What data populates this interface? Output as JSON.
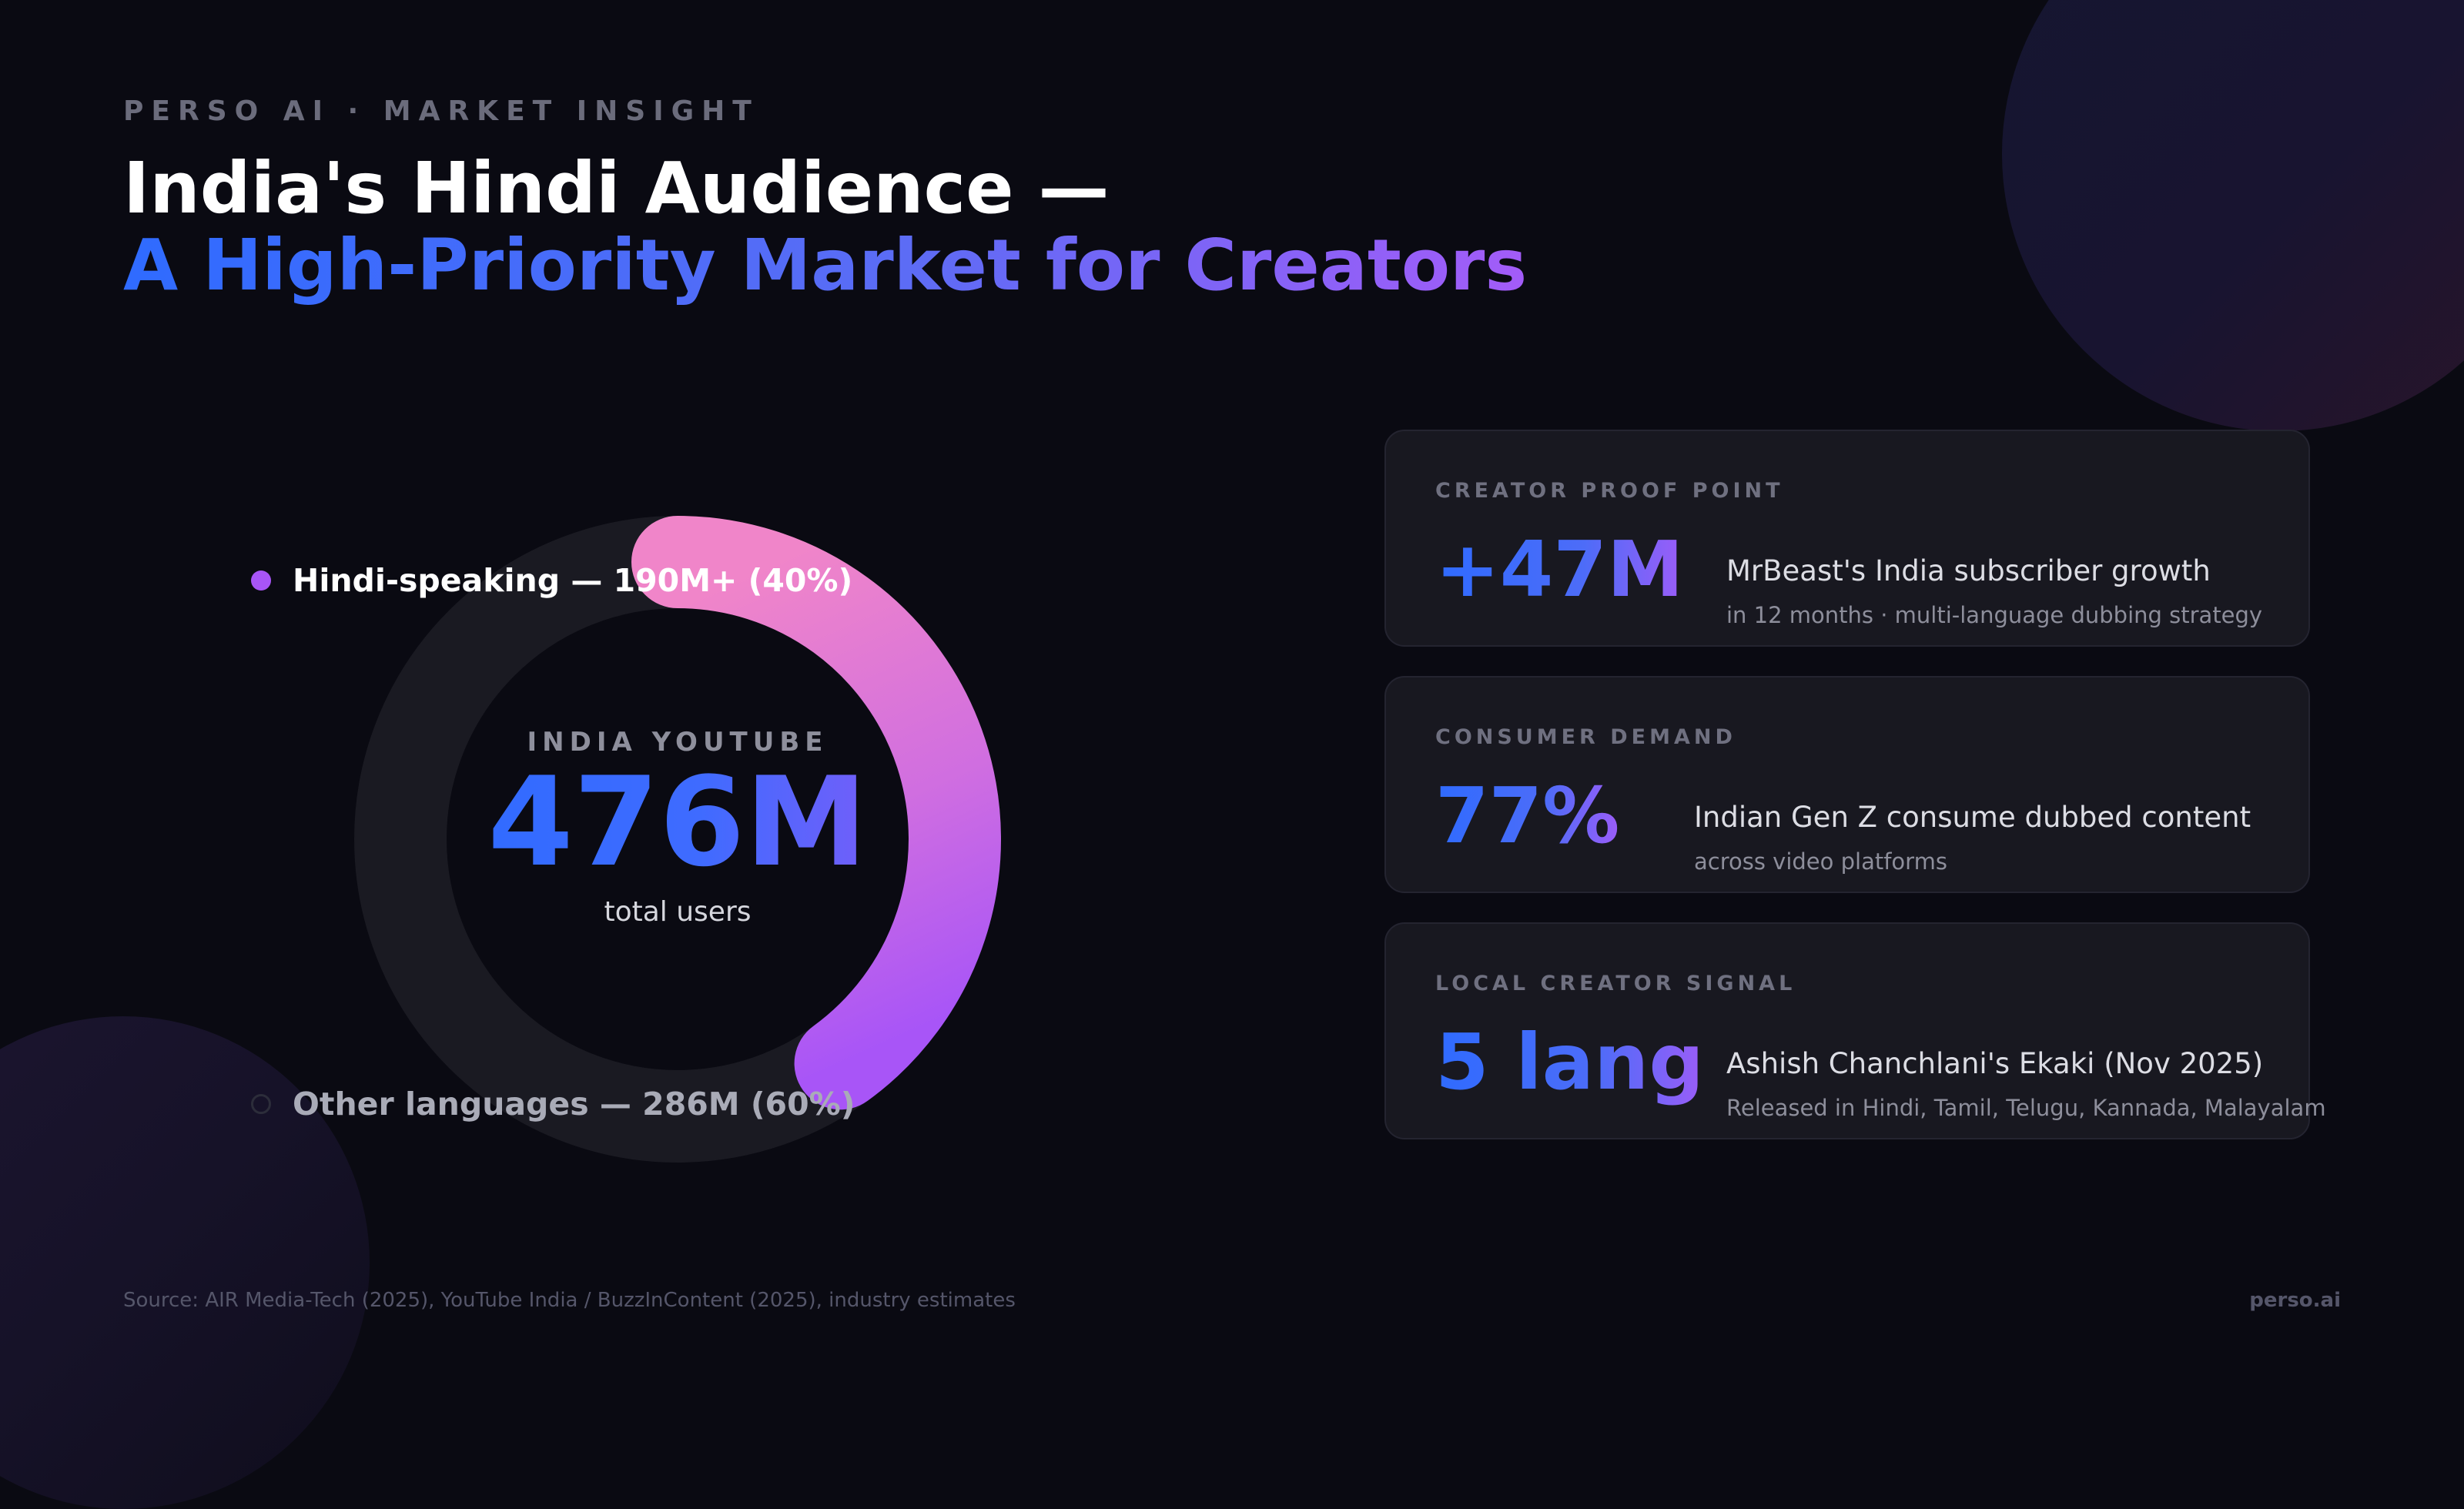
{
  "eyebrow": "PERSO AI · MARKET INSIGHT",
  "title": {
    "line1": "India's Hindi Audience —",
    "line2": "A High-Priority Market for Creators"
  },
  "chart_data": {
    "type": "pie",
    "donut": true,
    "center_label": "INDIA YOUTUBE",
    "center_value": "476M",
    "center_sub": "total users",
    "slices": [
      {
        "name": "Hindi-speaking",
        "value": 190,
        "percent": 40,
        "legend": "Hindi-speaking — 190M+ (40%)",
        "color": "#a855f7"
      },
      {
        "name": "Other languages",
        "value": 286,
        "percent": 60,
        "legend": "Other languages — 286M (60%)",
        "color": "#1a1a22"
      }
    ],
    "highlight_gradient": [
      "#f085c9",
      "#a855f7"
    ]
  },
  "cards": [
    {
      "label": "CREATOR PROOF POINT",
      "value": "+47M",
      "desc": "MrBeast's India subscriber growth",
      "sub": "in 12 months · multi-language dubbing strategy"
    },
    {
      "label": "CONSUMER DEMAND",
      "value": "77%",
      "desc": "Indian Gen Z consume dubbed content",
      "sub": "across video platforms"
    },
    {
      "label": "LOCAL CREATOR SIGNAL",
      "value": "5 lang",
      "desc": "Ashish Chanchlani's Ekaki (Nov 2025)",
      "sub": "Released in Hindi, Tamil, Telugu, Kannada, Malayalam"
    }
  ],
  "footer": {
    "source": "Source: AIR Media-Tech (2025), YouTube India / BuzzInContent (2025), industry estimates",
    "brand": "perso.ai"
  },
  "colors": {
    "background": "#0a0a12",
    "accent_blue": "#2f6bff",
    "accent_purple": "#a855f7",
    "accent_pink": "#f085c9",
    "card_bg": "#181820"
  }
}
